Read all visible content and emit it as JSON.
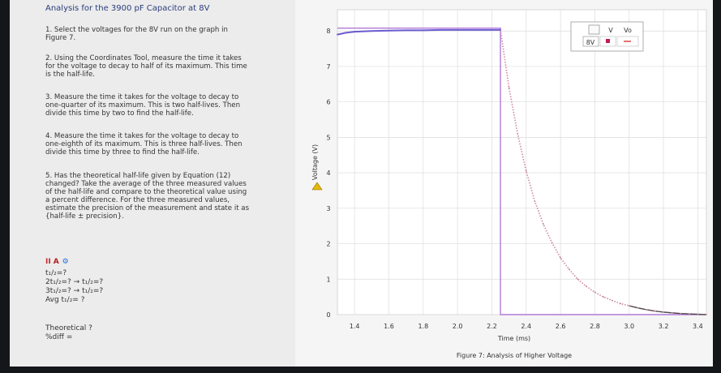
{
  "left": {
    "title": "Analysis for the 3900 pF Capacitor at 8V",
    "steps": [
      "1. Select the voltages for the 8V run on the graph in\nFigure 7.",
      "2. Using the Coordinates Tool, measure the time it takes\nfor the voltage to decay to half of its maximum. This time\nis the half-life.",
      "3. Measure the time it takes for the voltage to decay to\none-quarter of its maximum. This is two half-lives. Then\ndivide this time by two to find the half-life.",
      "4. Measure the time it takes for the voltage to decay to\none-eighth of its maximum. This is three half-lives. Then\ndivide this time by three to find the half-life.",
      "5. Has the theoretical half-life given by Equation (12)\nchanged? Take the average of the three measured values\nof the half-life and compare to the theoretical value using\na percent difference. For the three measured values,\nestimate the precision of the measurement and state it as\n{half-life ± precision}."
    ],
    "toolbar": {
      "a": "II",
      "b": "A",
      "c": "⚙"
    },
    "equations": {
      "line1": "t₁/₂=?",
      "line2": "2t₁/₂=? → t₁/₂=?",
      "line3": "3t₁/₂=? → t₁/₂=?",
      "line4": "Avg t₁/₂= ?"
    },
    "footer": {
      "theoretical": "Theoretical ?",
      "diff": "%diff ="
    }
  },
  "legend": {
    "col1": "V",
    "col2": "Vo",
    "row_label": "8V"
  },
  "caption": "Figure 7: Analysis of Higher Voltage",
  "colors": {
    "plateau": "#6b5bd1",
    "decay": "#c98aa0",
    "tail": "#4a4a4a",
    "vo": "#b07ad8",
    "legend_v": "#c2185b",
    "legend_vo": "#e57373",
    "warning": "#e6b800"
  },
  "chart_data": {
    "type": "line",
    "xlabel": "Time (ms)",
    "ylabel": "Voltage (V)",
    "xlim": [
      1.3,
      3.45
    ],
    "ylim": [
      0,
      8.6
    ],
    "xticks": [
      "1.4",
      "1.6",
      "1.8",
      "2.0",
      "2.2",
      "2.4",
      "2.6",
      "2.8",
      "3.0",
      "3.2",
      "3.4"
    ],
    "yticks": [
      "0",
      "1",
      "2",
      "3",
      "4",
      "5",
      "6",
      "7",
      "8"
    ],
    "series": [
      {
        "name": "V",
        "points": [
          [
            1.3,
            7.9
          ],
          [
            1.35,
            7.95
          ],
          [
            1.4,
            7.98
          ],
          [
            1.5,
            8.0
          ],
          [
            1.6,
            8.01
          ],
          [
            1.7,
            8.02
          ],
          [
            1.8,
            8.02
          ],
          [
            1.9,
            8.03
          ],
          [
            2.0,
            8.03
          ],
          [
            2.1,
            8.03
          ],
          [
            2.2,
            8.03
          ],
          [
            2.25,
            8.03
          ],
          [
            2.3,
            6.4
          ],
          [
            2.35,
            5.1
          ],
          [
            2.4,
            4.05
          ],
          [
            2.45,
            3.2
          ],
          [
            2.5,
            2.55
          ],
          [
            2.55,
            2.03
          ],
          [
            2.6,
            1.6
          ],
          [
            2.65,
            1.28
          ],
          [
            2.7,
            1.0
          ],
          [
            2.75,
            0.8
          ],
          [
            2.8,
            0.63
          ],
          [
            2.85,
            0.5
          ],
          [
            2.9,
            0.4
          ],
          [
            2.95,
            0.31
          ],
          [
            3.0,
            0.25
          ],
          [
            3.05,
            0.19
          ],
          [
            3.1,
            0.14
          ],
          [
            3.15,
            0.1
          ],
          [
            3.2,
            0.07
          ],
          [
            3.25,
            0.05
          ],
          [
            3.3,
            0.03
          ],
          [
            3.35,
            0.02
          ],
          [
            3.4,
            0.01
          ],
          [
            3.45,
            0.0
          ]
        ]
      },
      {
        "name": "Vo",
        "points": [
          [
            1.3,
            8.08
          ],
          [
            2.25,
            8.08
          ],
          [
            2.25,
            0.0
          ],
          [
            3.45,
            0.0
          ]
        ]
      }
    ]
  }
}
